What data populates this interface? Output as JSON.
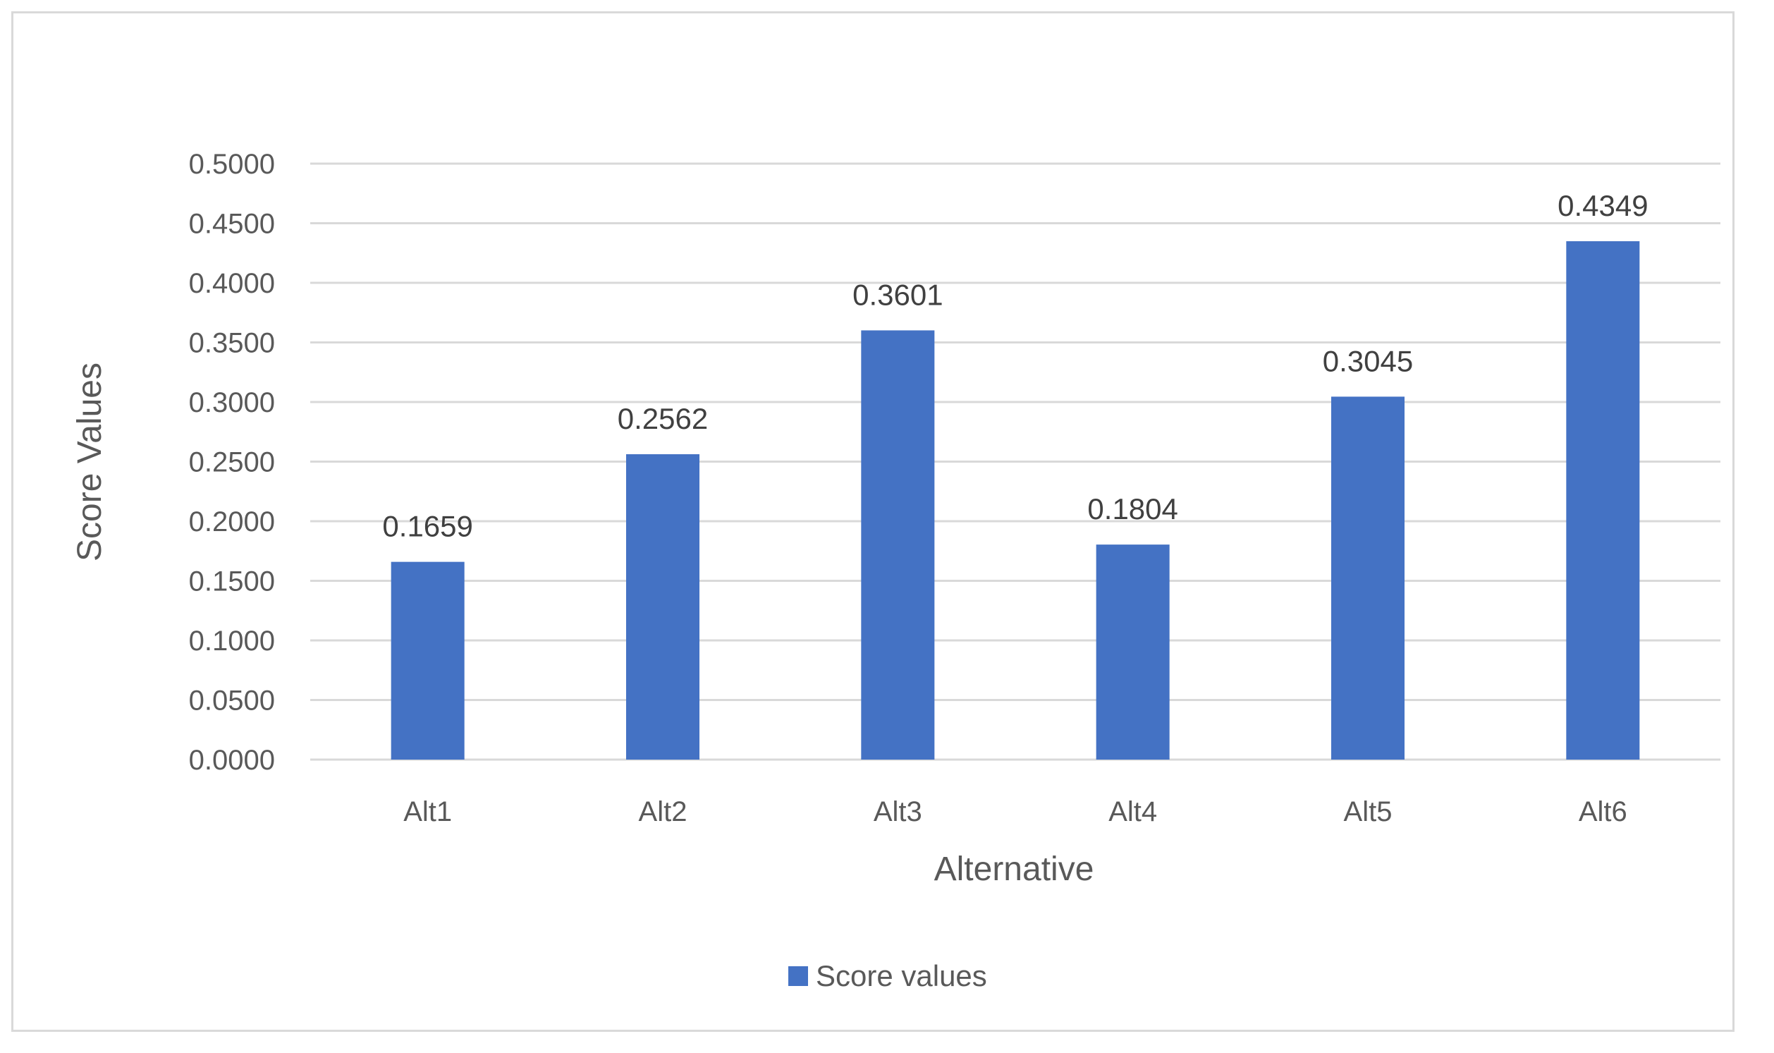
{
  "chart_data": {
    "type": "bar",
    "title": "",
    "xlabel": "Alternative",
    "ylabel": "Score Values",
    "categories": [
      "Alt1",
      "Alt2",
      "Alt3",
      "Alt4",
      "Alt5",
      "Alt6"
    ],
    "series": [
      {
        "name": "Score values",
        "values": [
          0.1659,
          0.2562,
          0.3601,
          0.1804,
          0.3045,
          0.4349
        ],
        "data_labels": [
          "0.1659",
          "0.2562",
          "0.3601",
          "0.1804",
          "0.3045",
          "0.4349"
        ],
        "color": "#4472c4"
      }
    ],
    "ylim": [
      0,
      0.5
    ],
    "yticks": [
      "0.0000",
      "0.0500",
      "0.1000",
      "0.1500",
      "0.2000",
      "0.2500",
      "0.3000",
      "0.3500",
      "0.4000",
      "0.4500",
      "0.5000"
    ],
    "grid": true,
    "legend_position": "bottom",
    "colors": {
      "bar": "#4472c4",
      "grid": "#d9d9d9",
      "text": "#595959"
    }
  }
}
